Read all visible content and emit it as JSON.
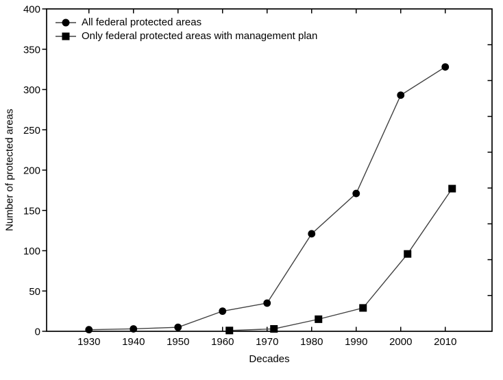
{
  "chart_data": {
    "type": "line",
    "title": "",
    "xlabel": "Decades",
    "ylabel": "Number of protected areas",
    "x_ticks": [
      1930,
      1940,
      1950,
      1960,
      1970,
      1980,
      1990,
      2000,
      2010
    ],
    "y_ticks": [
      0,
      50,
      100,
      150,
      200,
      250,
      300,
      350,
      400
    ],
    "xlim": [
      1920.5,
      2020.5
    ],
    "ylim": [
      0,
      400
    ],
    "grid": false,
    "legend_position": "top-left-inside",
    "series": [
      {
        "name": "All federal protected areas",
        "marker": "circle",
        "x": [
          1930,
          1940,
          1950,
          1960,
          1970,
          1980,
          1990,
          2000,
          2010
        ],
        "values": [
          2,
          3,
          5,
          25,
          35,
          121,
          171,
          293,
          328
        ]
      },
      {
        "name": "Only federal protected areas with management plan",
        "marker": "square",
        "x": [
          1960,
          1970,
          1980,
          1990,
          2000,
          2010
        ],
        "values": [
          1,
          3,
          15,
          29,
          96,
          177
        ]
      }
    ],
    "colors": {
      "background": "#ffffff",
      "frame": "#000000",
      "line": "#404040",
      "marker": "#000000",
      "text": "#000000"
    }
  }
}
